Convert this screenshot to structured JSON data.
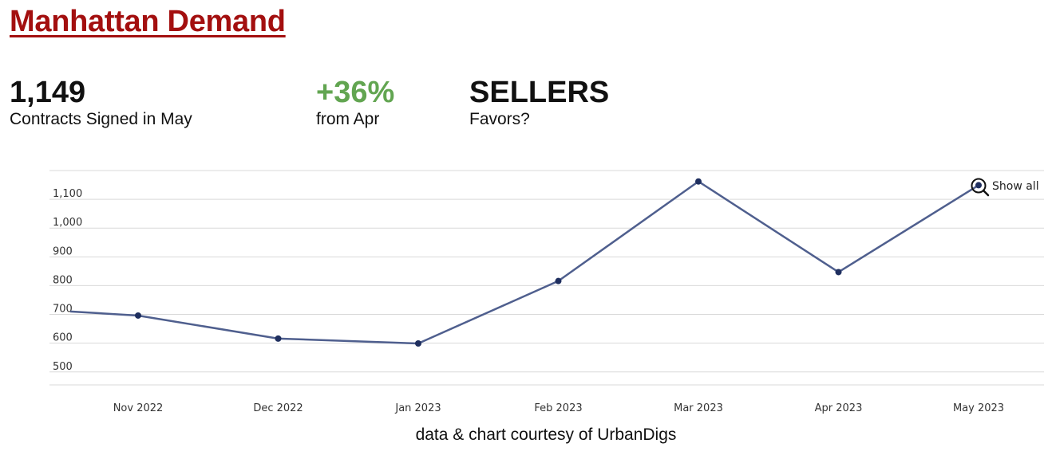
{
  "header": {
    "title": "Manhattan Demand"
  },
  "stats": {
    "contracts_value": "1,149",
    "contracts_label": "Contracts Signed in May",
    "change_value": "+36%",
    "change_label": "from Apr",
    "favors_value": "SELLERS",
    "favors_label": "Favors?"
  },
  "chart_data": {
    "type": "line",
    "categories": [
      "Nov 2022",
      "Dec 2022",
      "Jan 2023",
      "Feb 2023",
      "Mar 2023",
      "Apr 2023",
      "May 2023"
    ],
    "series": [
      {
        "values": [
          696,
          616,
          599,
          816,
          1162,
          847,
          1149
        ],
        "color": "#4f5f8e"
      }
    ],
    "line_start_value": 710,
    "ylim": [
      455,
      1200
    ],
    "yticks": [
      500,
      600,
      700,
      800,
      900,
      1000,
      1100
    ],
    "ytick_labels": [
      "500",
      "600",
      "700",
      "800",
      "900",
      "1,000",
      "1,100"
    ],
    "xlabel": "",
    "ylabel": "",
    "grid": true,
    "legend": "none",
    "show_all_label": "Show all",
    "show_all_icon": "zoom-icon",
    "colors": {
      "line": "#4f5f8e",
      "point": "#1f2f5f",
      "grid": "#d9d9d9"
    }
  },
  "footer": {
    "credit": "data & chart courtesy of UrbanDigs"
  }
}
